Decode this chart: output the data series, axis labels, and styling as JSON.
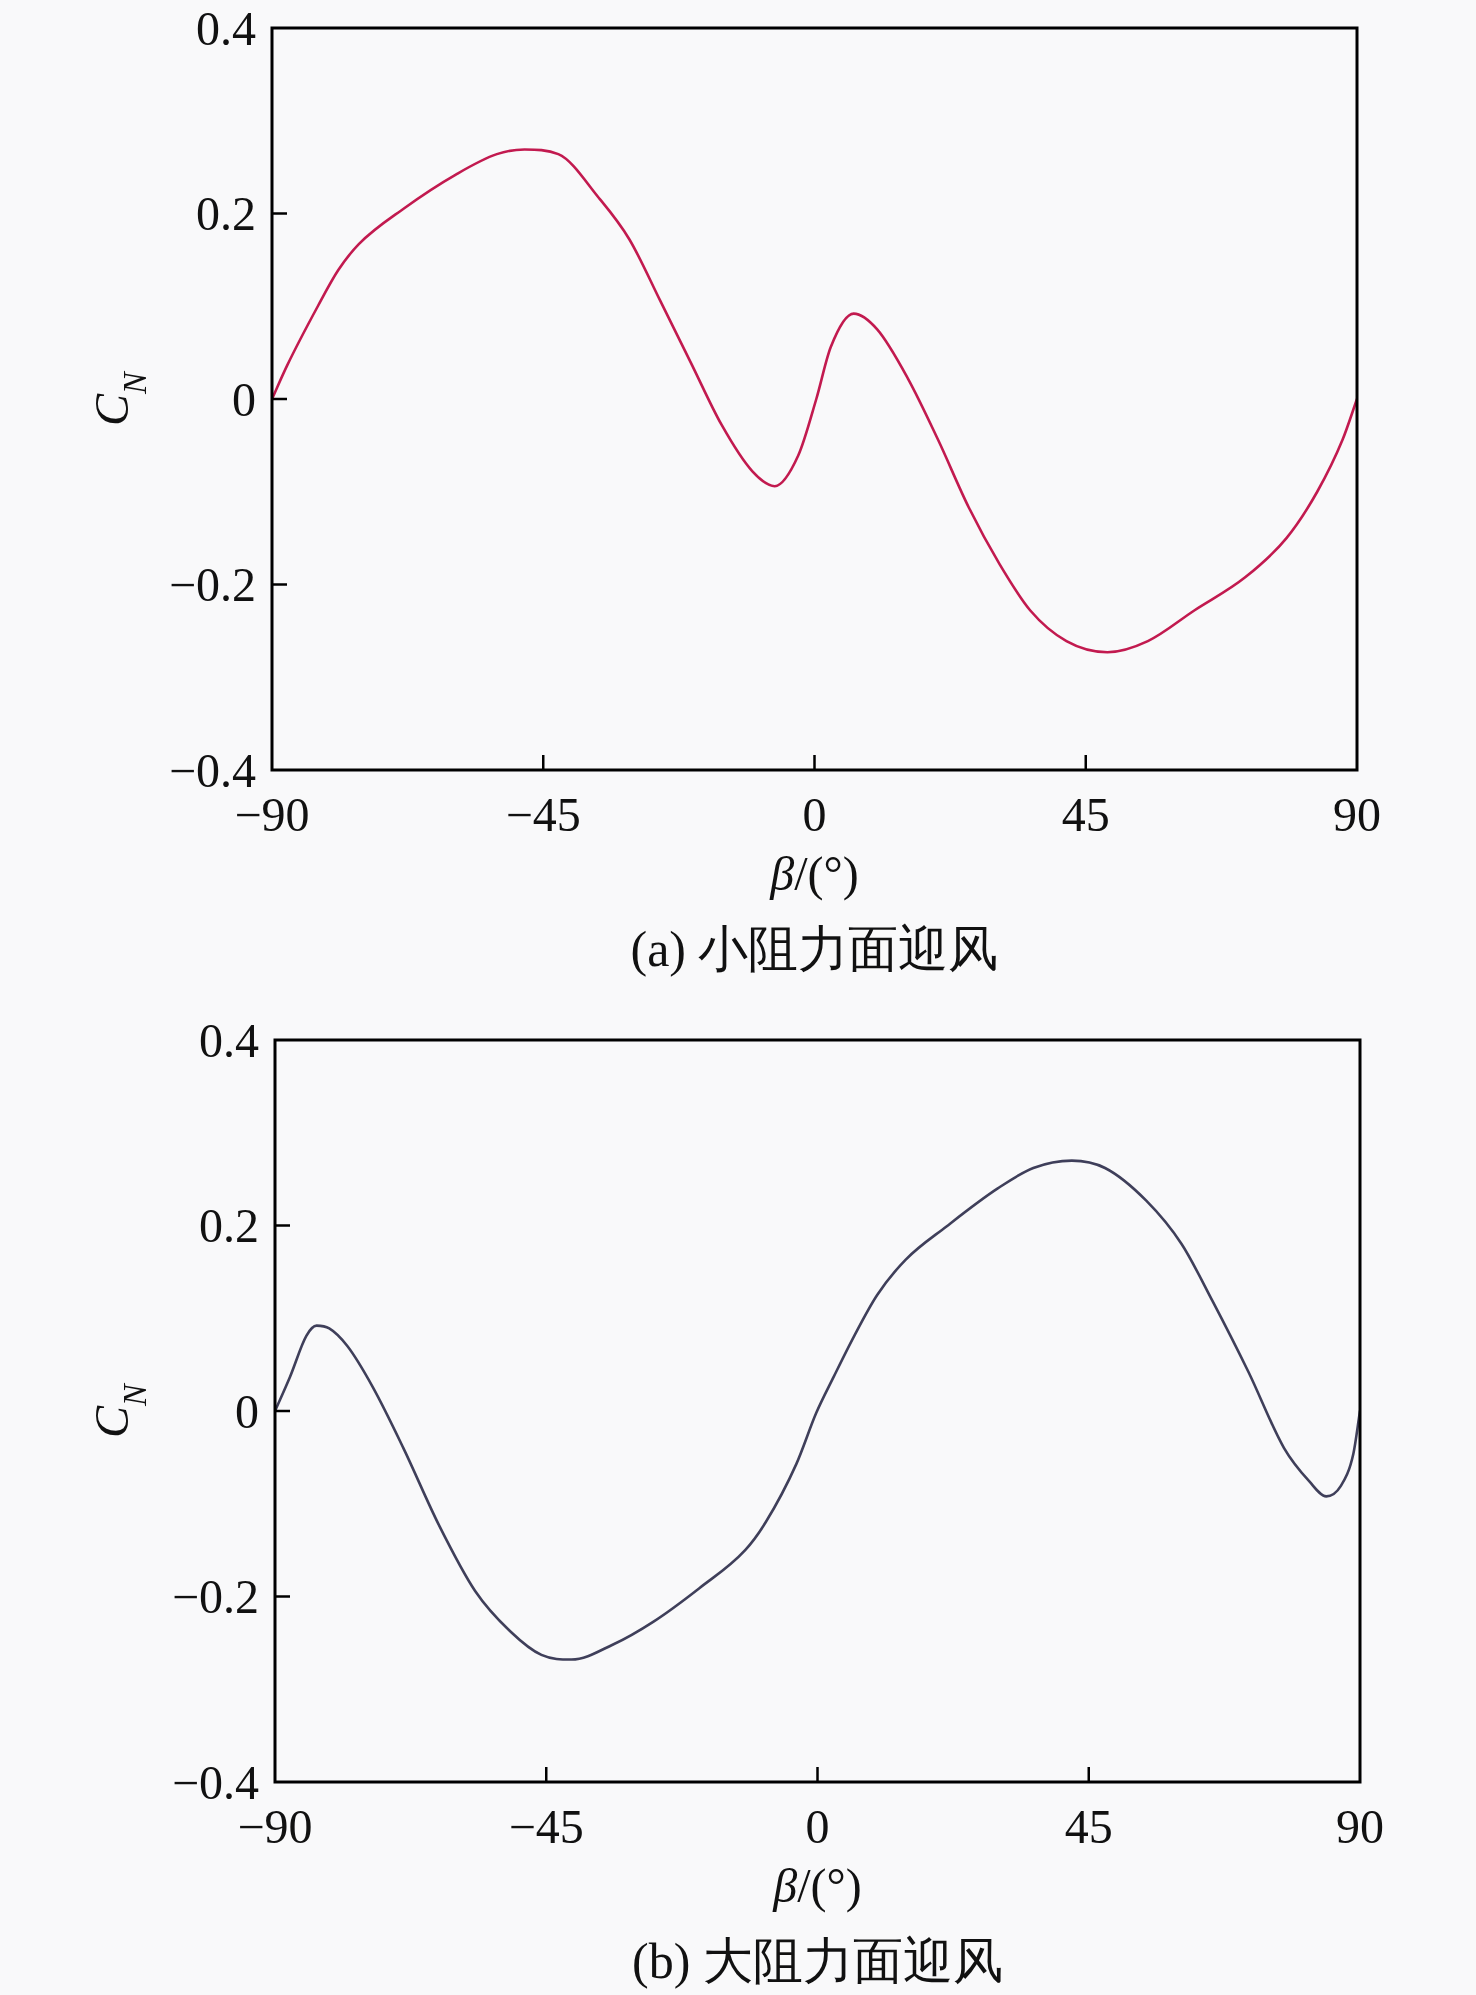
{
  "chart_data": [
    {
      "type": "line",
      "title": "(a) 小阻力面迎风",
      "xlabel": "β/(°)",
      "ylabel": "C$_{N}$",
      "xlim": [
        -90,
        90
      ],
      "ylim": [
        -0.4,
        0.4
      ],
      "xticks": [
        -90,
        -45,
        0,
        45,
        90
      ],
      "yticks": [
        -0.4,
        -0.2,
        0,
        0.2,
        0.4
      ],
      "series": [
        {
          "color": "#c21a4f",
          "x": [
            -90,
            -87.5,
            -82.4,
            -79,
            -75.6,
            -68,
            -59.5,
            -52.7,
            -48.1,
            -42.5,
            -35.8,
            -30.7,
            -25.6,
            -20.5,
            -15.4,
            -10.3,
            -6.6,
            -2.7,
            0.3,
            2.7,
            6.5,
            10.4,
            15.5,
            20.5,
            25.6,
            30.7,
            35.8,
            41.8,
            48.6,
            55.3,
            63,
            71.5,
            78.3,
            83.4,
            87.6,
            90
          ],
          "values": [
            0,
            0.036,
            0.1,
            0.139,
            0.167,
            0.206,
            0.242,
            0.264,
            0.269,
            0.264,
            0.217,
            0.172,
            0.106,
            0.039,
            -0.028,
            -0.078,
            -0.094,
            -0.061,
            0,
            0.056,
            0.092,
            0.075,
            0.022,
            -0.044,
            -0.117,
            -0.178,
            -0.228,
            -0.261,
            -0.273,
            -0.261,
            -0.228,
            -0.192,
            -0.15,
            -0.1,
            -0.044,
            0
          ]
        }
      ]
    },
    {
      "type": "line",
      "title": "(b) 大阻力面迎风",
      "xlabel": "β/(°)",
      "ylabel": "C$_{N}$",
      "xlim": [
        -90,
        90
      ],
      "ylim": [
        -0.4,
        0.4
      ],
      "xticks": [
        -90,
        -45,
        0,
        45,
        90
      ],
      "yticks": [
        -0.4,
        -0.2,
        0,
        0.2,
        0.4
      ],
      "series": [
        {
          "color": "#3f3f5a",
          "x": [
            -90,
            -87.5,
            -84.8,
            -83.1,
            -81,
            -78,
            -73.8,
            -68.7,
            -62.8,
            -56.8,
            -50.9,
            -45.8,
            -40.8,
            -34,
            -27.2,
            -19.6,
            -12,
            -8.6,
            -3.5,
            -0.2,
            2.7,
            6.1,
            9.9,
            14.6,
            21.4,
            29.9,
            35.8,
            42.2,
            47.7,
            54.5,
            60.4,
            65.5,
            71.5,
            77.4,
            81.6,
            84.4,
            86.8,
            88.9,
            90
          ],
          "values": [
            0,
            0.037,
            0.081,
            0.092,
            0.089,
            0.07,
            0.026,
            -0.04,
            -0.123,
            -0.194,
            -0.238,
            -0.263,
            -0.268,
            -0.252,
            -0.227,
            -0.191,
            -0.15,
            -0.12,
            -0.057,
            -0.002,
            0.037,
            0.081,
            0.125,
            0.163,
            0.199,
            0.24,
            0.262,
            0.27,
            0.262,
            0.227,
            0.18,
            0.119,
            0.042,
            -0.04,
            -0.076,
            -0.092,
            -0.081,
            -0.046,
            0
          ]
        }
      ]
    }
  ]
}
